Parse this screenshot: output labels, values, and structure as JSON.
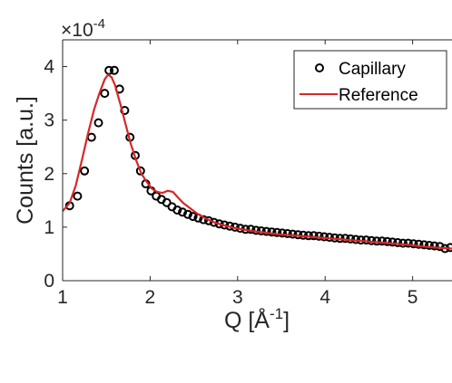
{
  "chart_data": {
    "type": "line",
    "xlabel": "Q [Å",
    "xlabel_sup": "-1",
    "xlabel_close": "]",
    "ylabel": "Counts [a.u.]",
    "exponent_base": "×10",
    "exponent_power": "-4",
    "xlim": [
      1,
      5.45
    ],
    "ylim": [
      0,
      4.5
    ],
    "x_ticks": [
      1,
      2,
      3,
      4,
      5
    ],
    "x_tick_labels": [
      "1",
      "2",
      "3",
      "4",
      "5"
    ],
    "y_ticks": [
      0,
      1,
      2,
      3,
      4
    ],
    "y_tick_labels": [
      "0",
      "1",
      "2",
      "3",
      "4"
    ],
    "grid": false,
    "legend": {
      "position": "top-right",
      "entries": [
        "Capillary",
        "Reference"
      ]
    },
    "series": [
      {
        "name": "Capillary",
        "style": "markers",
        "color": "#000000",
        "x": [
          1.08,
          1.17,
          1.25,
          1.33,
          1.41,
          1.48,
          1.53,
          1.59,
          1.65,
          1.71,
          1.77,
          1.83,
          1.89,
          1.95,
          2.01,
          2.07,
          2.13,
          2.19,
          2.25,
          2.31,
          2.37,
          2.43,
          2.49,
          2.55,
          2.61,
          2.67,
          2.73,
          2.79,
          2.85,
          2.91,
          2.97,
          3.03,
          3.09,
          3.15,
          3.21,
          3.27,
          3.33,
          3.39,
          3.45,
          3.51,
          3.57,
          3.63,
          3.69,
          3.75,
          3.81,
          3.87,
          3.93,
          3.99,
          4.05,
          4.11,
          4.17,
          4.23,
          4.29,
          4.35,
          4.41,
          4.47,
          4.53,
          4.59,
          4.65,
          4.71,
          4.77,
          4.83,
          4.89,
          4.95,
          5.01,
          5.07,
          5.13,
          5.19,
          5.25,
          5.31,
          5.37,
          5.43
        ],
        "values": [
          1.4,
          1.58,
          2.05,
          2.68,
          2.95,
          3.5,
          3.93,
          3.93,
          3.58,
          3.18,
          2.68,
          2.34,
          2.05,
          1.81,
          1.68,
          1.58,
          1.52,
          1.46,
          1.38,
          1.32,
          1.28,
          1.24,
          1.2,
          1.17,
          1.14,
          1.12,
          1.09,
          1.06,
          1.04,
          1.02,
          1.0,
          0.98,
          0.96,
          0.96,
          0.94,
          0.93,
          0.92,
          0.91,
          0.9,
          0.89,
          0.88,
          0.87,
          0.86,
          0.85,
          0.84,
          0.84,
          0.83,
          0.82,
          0.81,
          0.8,
          0.79,
          0.79,
          0.78,
          0.77,
          0.76,
          0.76,
          0.75,
          0.74,
          0.74,
          0.73,
          0.72,
          0.71,
          0.7,
          0.7,
          0.69,
          0.68,
          0.67,
          0.66,
          0.65,
          0.64,
          0.6,
          0.62
        ]
      },
      {
        "name": "Reference",
        "style": "line",
        "color": "#d62728",
        "x": [
          1.0,
          1.08,
          1.15,
          1.22,
          1.29,
          1.36,
          1.42,
          1.48,
          1.52,
          1.56,
          1.6,
          1.66,
          1.72,
          1.78,
          1.84,
          1.9,
          1.96,
          2.02,
          2.08,
          2.14,
          2.2,
          2.26,
          2.32,
          2.38,
          2.46,
          2.55,
          2.65,
          2.75,
          2.85,
          2.95,
          3.05,
          3.15,
          3.3,
          3.45,
          3.6,
          3.75,
          3.9,
          4.05,
          4.2,
          4.35,
          4.5,
          4.65,
          4.8,
          4.95,
          5.1,
          5.25,
          5.45
        ],
        "values": [
          1.3,
          1.45,
          1.78,
          2.25,
          2.75,
          3.2,
          3.5,
          3.76,
          3.85,
          3.8,
          3.65,
          3.3,
          2.92,
          2.55,
          2.25,
          2.0,
          1.85,
          1.72,
          1.66,
          1.64,
          1.68,
          1.66,
          1.55,
          1.45,
          1.35,
          1.24,
          1.15,
          1.08,
          1.03,
          0.99,
          0.96,
          0.93,
          0.9,
          0.87,
          0.85,
          0.83,
          0.81,
          0.79,
          0.77,
          0.75,
          0.73,
          0.71,
          0.69,
          0.67,
          0.64,
          0.62,
          0.6
        ]
      }
    ]
  }
}
